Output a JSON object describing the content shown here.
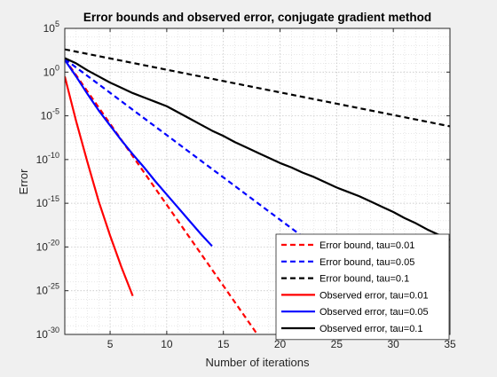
{
  "chart_data": {
    "type": "line",
    "title": "Error bounds and observed error, conjugate gradient method",
    "xlabel": "Number of iterations",
    "ylabel": "Error",
    "xlim": [
      1,
      35
    ],
    "ylim_log10": [
      -30,
      5
    ],
    "yscale": "log",
    "grid": true,
    "minor_grid": true,
    "legend_position": "bottom-right",
    "x_ticks": [
      {
        "value": 5,
        "label": "5"
      },
      {
        "value": 10,
        "label": "10"
      },
      {
        "value": 15,
        "label": "15"
      },
      {
        "value": 20,
        "label": "20"
      },
      {
        "value": 25,
        "label": "25"
      },
      {
        "value": 30,
        "label": "30"
      },
      {
        "value": 35,
        "label": "35"
      }
    ],
    "y_ticks": [
      {
        "exp": 5,
        "label": "5"
      },
      {
        "exp": 0,
        "label": "0"
      },
      {
        "exp": -5,
        "label": "-5"
      },
      {
        "exp": -10,
        "label": "-10"
      },
      {
        "exp": -15,
        "label": "-15"
      },
      {
        "exp": -20,
        "label": "-20"
      },
      {
        "exp": -25,
        "label": "-25"
      },
      {
        "exp": -30,
        "label": "-30"
      }
    ],
    "y_tick_base": "10",
    "series": [
      {
        "name": "Error bound, tau=0.01",
        "color": "#ff0000",
        "style": "dashed",
        "x": [
          1,
          18
        ],
        "y_log10": [
          1.5,
          -30
        ]
      },
      {
        "name": "Error bound, tau=0.05",
        "color": "#0000ff",
        "style": "dashed",
        "x": [
          1,
          35
        ],
        "y_log10": [
          1.5,
          -31.4
        ]
      },
      {
        "name": "Error bound, tau=0.1",
        "color": "#000000",
        "style": "dashed",
        "x": [
          1,
          35
        ],
        "y_log10": [
          2.6,
          -6.2
        ]
      },
      {
        "name": "Observed error, tau=0.01",
        "color": "#ff0000",
        "style": "solid",
        "x": [
          1,
          2,
          3,
          4,
          5,
          6,
          7
        ],
        "y_log10": [
          -0.5,
          -5.6,
          -10.3,
          -14.8,
          -18.7,
          -22.3,
          -25.6
        ]
      },
      {
        "name": "Observed error, tau=0.05",
        "color": "#0000ff",
        "style": "solid",
        "x": [
          1,
          2,
          3,
          4,
          5,
          6,
          7,
          8,
          9,
          10,
          11,
          12,
          13,
          14
        ],
        "y_log10": [
          1.4,
          -0.5,
          -2.5,
          -4.4,
          -6.1,
          -7.8,
          -9.4,
          -10.9,
          -12.5,
          -14.0,
          -15.5,
          -17.0,
          -18.5,
          -19.9
        ]
      },
      {
        "name": "Observed error, tau=0.1",
        "color": "#000000",
        "style": "solid",
        "x": [
          1,
          2,
          3,
          4,
          5,
          6,
          7,
          8,
          9,
          10,
          11,
          12,
          13,
          14,
          15,
          16,
          17,
          18,
          19,
          20,
          21,
          22,
          23,
          24,
          25,
          26,
          27,
          28,
          29,
          30,
          31,
          32,
          33,
          34,
          35
        ],
        "y_log10": [
          1.6,
          1.0,
          0.2,
          -0.5,
          -1.2,
          -1.8,
          -2.4,
          -2.9,
          -3.4,
          -3.9,
          -4.6,
          -5.3,
          -6.0,
          -6.7,
          -7.3,
          -8.0,
          -8.6,
          -9.2,
          -9.8,
          -10.4,
          -10.9,
          -11.5,
          -12.0,
          -12.6,
          -13.2,
          -13.7,
          -14.2,
          -14.8,
          -15.4,
          -16.0,
          -16.7,
          -17.3,
          -18.0,
          -18.6,
          -19.2
        ]
      }
    ]
  }
}
